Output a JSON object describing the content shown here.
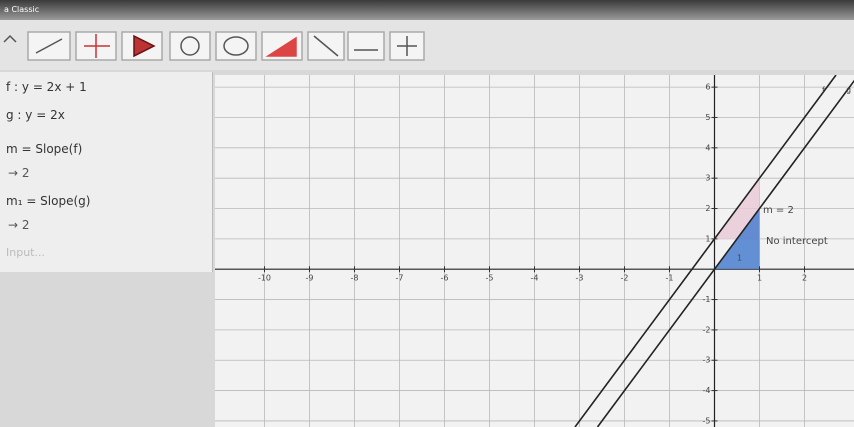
{
  "window": {
    "title": "a Classic"
  },
  "algebra": {
    "entries": [
      {
        "definition": "f : y = 2x + 1"
      },
      {
        "definition": "g : y = 2x"
      },
      {
        "definition": "m = Slope(f)",
        "value": "→ 2"
      },
      {
        "definition": "m₁ = Slope(g)",
        "value": "→ 2"
      }
    ],
    "input": "Input..."
  },
  "graphics": {
    "xlim": [
      -11.1,
      3.1
    ],
    "ylim": [
      -5.2,
      6.4
    ],
    "xticks": [
      -10,
      -9,
      -8,
      -7,
      -6,
      -5,
      -4,
      -3,
      -2,
      -1,
      1,
      2
    ],
    "yticks": [
      -5,
      -4,
      -3,
      -2,
      -1,
      1,
      2,
      3,
      4,
      5,
      6
    ],
    "labels": {
      "f": "f",
      "g": "g",
      "slope": "m = 2",
      "intercept": "No intercept",
      "run": 1
    }
  }
}
